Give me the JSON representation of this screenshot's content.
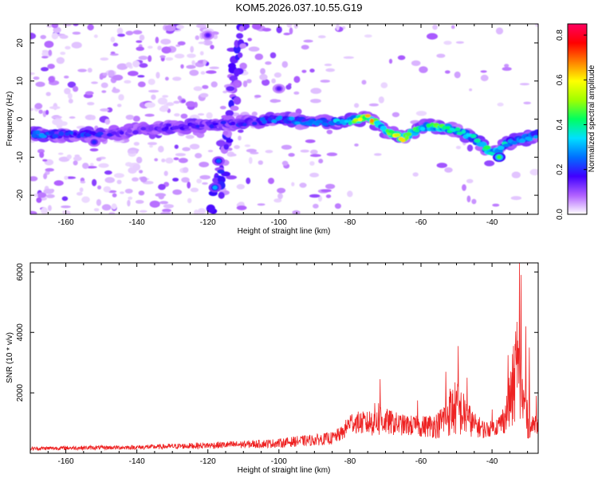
{
  "title": "KOM5.2026.037.10.55.G19",
  "chart_data": [
    {
      "type": "heatmap",
      "name": "spectrogram",
      "xlabel": "Height of straight line (km)",
      "ylabel": "Frequency (Hz)",
      "xlim": [
        -170,
        -27
      ],
      "ylim": [
        -25,
        25
      ],
      "xticks": [
        "-160",
        "-140",
        "-120",
        "-100",
        "-80",
        "-60",
        "-40"
      ],
      "xtick_values": [
        -160,
        -140,
        -120,
        -100,
        -80,
        -60,
        -40
      ],
      "yticks": [
        "-20",
        "-10",
        "0",
        "10",
        "20"
      ],
      "ytick_values": [
        -20,
        -10,
        0,
        10,
        20
      ],
      "colorbar": {
        "label": "Normalized spectral amplitude",
        "ticks": [
          "0.0",
          "0.2",
          "0.4",
          "0.6",
          "0.8"
        ],
        "tick_values": [
          0.0,
          0.2,
          0.4,
          0.6,
          0.8
        ],
        "range": [
          0,
          0.85
        ],
        "colormap": [
          "#ffffff",
          "#b060ff",
          "#4000ff",
          "#0070ff",
          "#00e0ff",
          "#00ff60",
          "#a0ff00",
          "#ffff00",
          "#ff8000",
          "#ff0000",
          "#ff0060"
        ]
      },
      "ridge": {
        "x": [
          -168,
          -160,
          -150,
          -140,
          -130,
          -120,
          -110,
          -100,
          -90,
          -80,
          -75,
          -70,
          -65,
          -60,
          -55,
          -50,
          -45,
          -40,
          -35,
          -30,
          -27
        ],
        "frequency": [
          -4,
          -4,
          -4,
          -3,
          -2,
          -1.5,
          -1,
          0,
          -1,
          -0.5,
          0.5,
          -3,
          -5,
          -2,
          -2,
          -3,
          -5,
          -9,
          -6,
          -5,
          -4
        ],
        "amplitude": [
          0.3,
          0.25,
          0.22,
          0.15,
          0.18,
          0.2,
          0.22,
          0.3,
          0.3,
          0.4,
          0.85,
          0.45,
          0.72,
          0.4,
          0.55,
          0.4,
          0.4,
          0.5,
          0.35,
          0.4,
          0.35
        ]
      },
      "secondary_features": [
        {
          "x": -120,
          "frequency": 22,
          "amplitude": 0.15
        },
        {
          "x": -118,
          "frequency": -18,
          "amplitude": 0.3
        },
        {
          "x": -117,
          "frequency": -11,
          "amplitude": 0.25
        },
        {
          "x": -100,
          "frequency": 8,
          "amplitude": 0.15
        },
        {
          "x": -152,
          "frequency": -6,
          "amplitude": 0.2
        },
        {
          "x": -38,
          "frequency": -10,
          "amplitude": 0.45
        }
      ]
    },
    {
      "type": "line",
      "name": "snr",
      "color": "#ee2222",
      "xlabel": "Height of straight line (km)",
      "ylabel": "SNR (10 * v/v)",
      "xlim": [
        -170,
        -27
      ],
      "ylim": [
        0,
        6300
      ],
      "xticks": [
        "-160",
        "-140",
        "-120",
        "-100",
        "-80",
        "-60",
        "-40"
      ],
      "xtick_values": [
        -160,
        -140,
        -120,
        -100,
        -80,
        -60,
        -40
      ],
      "yticks": [
        "2000",
        "4000",
        "6000"
      ],
      "ytick_values": [
        2000,
        4000,
        6000
      ],
      "envelope": {
        "x": [
          -170,
          -160,
          -150,
          -140,
          -130,
          -120,
          -110,
          -100,
          -95,
          -90,
          -85,
          -82,
          -80,
          -75,
          -72,
          -70,
          -65,
          -60,
          -55,
          -52,
          -50,
          -48,
          -45,
          -42,
          -40,
          -38,
          -36,
          -34,
          -33,
          -32,
          -31,
          -30,
          -29,
          -28,
          -27
        ],
        "base": [
          150,
          170,
          180,
          190,
          220,
          250,
          280,
          320,
          380,
          420,
          480,
          650,
          1000,
          950,
          1100,
          1000,
          900,
          850,
          900,
          1300,
          1400,
          1200,
          900,
          750,
          800,
          900,
          1200,
          2000,
          2800,
          1800,
          1500,
          1000,
          800,
          1000,
          900
        ],
        "amp": [
          120,
          140,
          140,
          150,
          180,
          220,
          250,
          300,
          350,
          380,
          420,
          500,
          700,
          800,
          1300,
          900,
          700,
          700,
          900,
          1700,
          1900,
          1500,
          800,
          600,
          500,
          700,
          1200,
          2800,
          3500,
          2200,
          2000,
          1200,
          600,
          700,
          600
        ]
      },
      "peaks": [
        {
          "x": -71.5,
          "y": 2450
        },
        {
          "x": -61,
          "y": 1750
        },
        {
          "x": -53,
          "y": 2700
        },
        {
          "x": -49.5,
          "y": 3550
        },
        {
          "x": -47,
          "y": 2500
        },
        {
          "x": -40,
          "y": 1450
        },
        {
          "x": -35.5,
          "y": 3250
        },
        {
          "x": -33,
          "y": 4350
        },
        {
          "x": -32.3,
          "y": 6300
        },
        {
          "x": -31.8,
          "y": 5900
        },
        {
          "x": -30.5,
          "y": 4200
        },
        {
          "x": -29.5,
          "y": 3500
        },
        {
          "x": -27.5,
          "y": 1900
        }
      ]
    }
  ]
}
